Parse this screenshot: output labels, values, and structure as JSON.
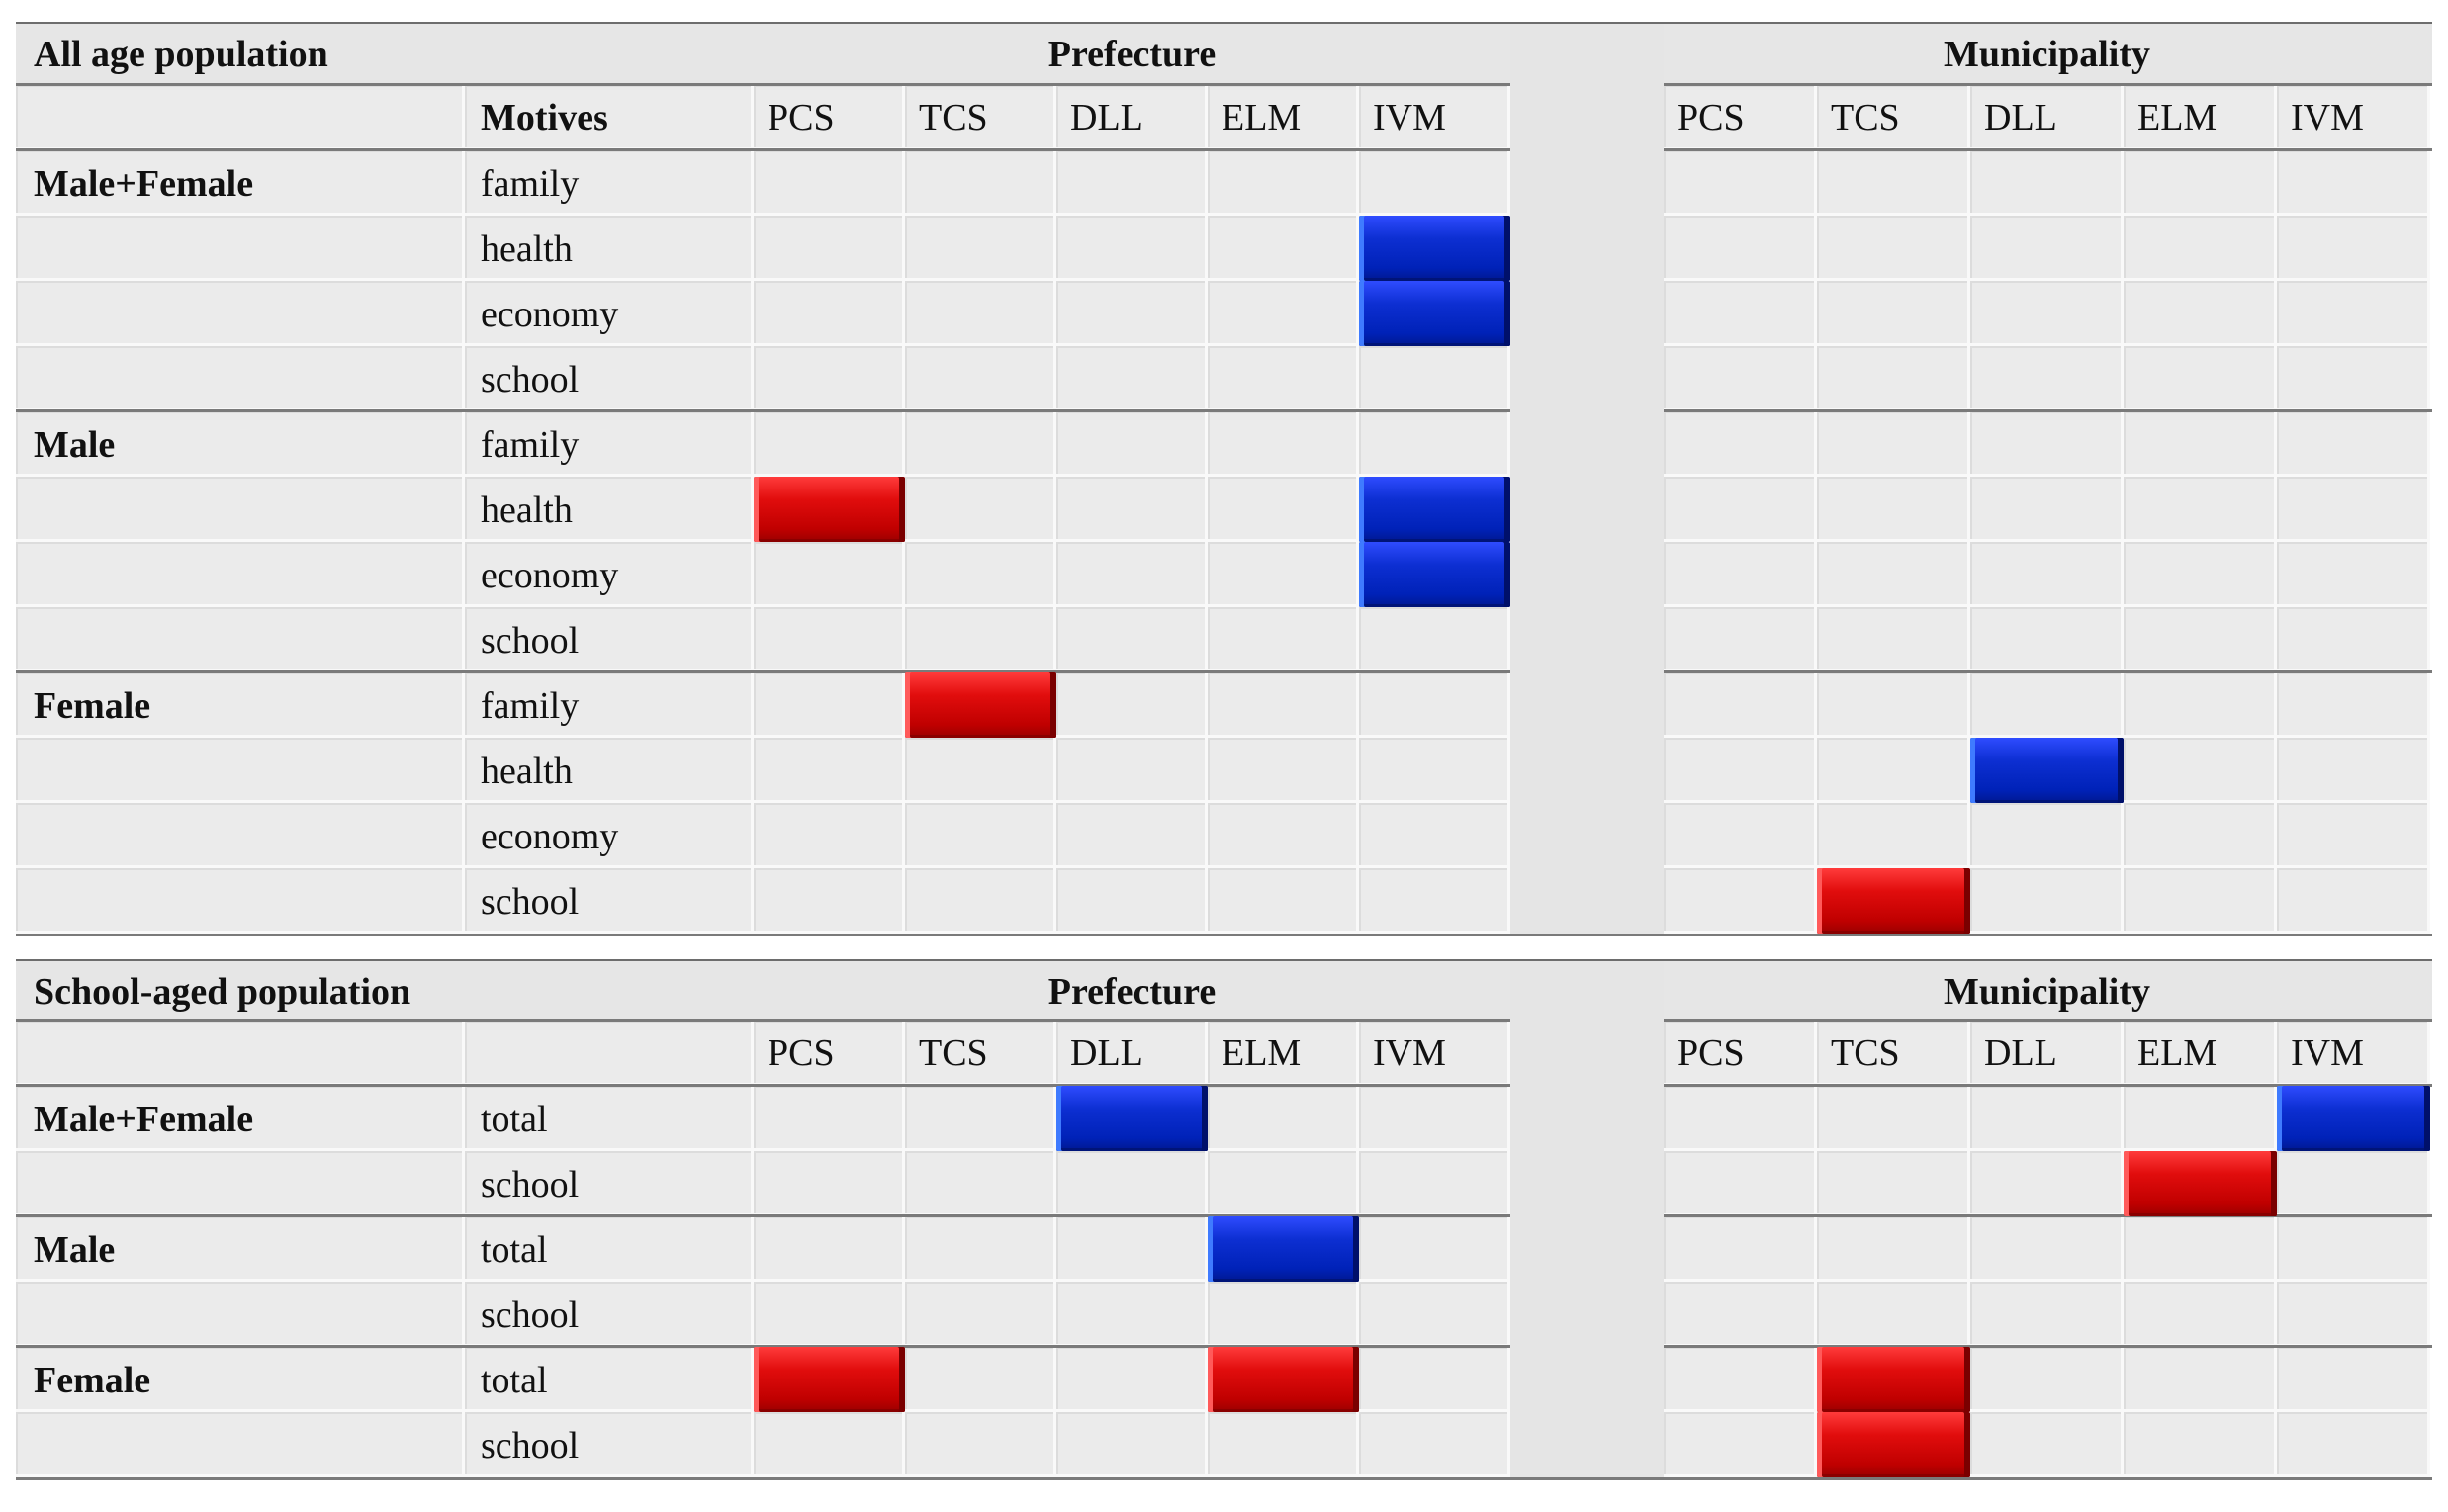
{
  "sections": [
    {
      "id": "all-age",
      "title": "All age population",
      "group_label_col": "",
      "sub_label_col": "Motives",
      "rows": [
        {
          "group": "Male+Female",
          "sub": "family"
        },
        {
          "group": "",
          "sub": "health"
        },
        {
          "group": "",
          "sub": "economy"
        },
        {
          "group": "",
          "sub": "school"
        },
        {
          "group": "Male",
          "sub": "family"
        },
        {
          "group": "",
          "sub": "health"
        },
        {
          "group": "",
          "sub": "economy"
        },
        {
          "group": "",
          "sub": "school"
        },
        {
          "group": "Female",
          "sub": "family"
        },
        {
          "group": "",
          "sub": "health"
        },
        {
          "group": "",
          "sub": "economy"
        },
        {
          "group": "",
          "sub": "school"
        }
      ],
      "marks": [
        {
          "row": 1,
          "panel": "Prefecture",
          "col": "IVM",
          "color": "blue"
        },
        {
          "row": 2,
          "panel": "Prefecture",
          "col": "IVM",
          "color": "blue"
        },
        {
          "row": 5,
          "panel": "Prefecture",
          "col": "PCS",
          "color": "red"
        },
        {
          "row": 5,
          "panel": "Prefecture",
          "col": "IVM",
          "color": "blue"
        },
        {
          "row": 6,
          "panel": "Prefecture",
          "col": "IVM",
          "color": "blue"
        },
        {
          "row": 8,
          "panel": "Prefecture",
          "col": "TCS",
          "color": "red"
        },
        {
          "row": 9,
          "panel": "Municipality",
          "col": "DLL",
          "color": "blue"
        },
        {
          "row": 11,
          "panel": "Municipality",
          "col": "TCS",
          "color": "red"
        }
      ]
    },
    {
      "id": "school-aged",
      "title": "School-aged population",
      "group_label_col": "",
      "sub_label_col": "",
      "rows": [
        {
          "group": "Male+Female",
          "sub": "total"
        },
        {
          "group": "",
          "sub": "school"
        },
        {
          "group": "Male",
          "sub": "total"
        },
        {
          "group": "",
          "sub": "school"
        },
        {
          "group": "Female",
          "sub": "total"
        },
        {
          "group": "",
          "sub": "school"
        }
      ],
      "marks": [
        {
          "row": 0,
          "panel": "Prefecture",
          "col": "DLL",
          "color": "blue"
        },
        {
          "row": 0,
          "panel": "Municipality",
          "col": "IVM",
          "color": "blue"
        },
        {
          "row": 1,
          "panel": "Municipality",
          "col": "ELM",
          "color": "red"
        },
        {
          "row": 2,
          "panel": "Prefecture",
          "col": "ELM",
          "color": "blue"
        },
        {
          "row": 4,
          "panel": "Prefecture",
          "col": "PCS",
          "color": "red"
        },
        {
          "row": 4,
          "panel": "Prefecture",
          "col": "ELM",
          "color": "red"
        },
        {
          "row": 4,
          "panel": "Municipality",
          "col": "TCS",
          "color": "red"
        },
        {
          "row": 5,
          "panel": "Municipality",
          "col": "TCS",
          "color": "red"
        }
      ]
    }
  ],
  "panels": [
    "Prefecture",
    "Municipality"
  ],
  "columns": [
    "PCS",
    "TCS",
    "DLL",
    "ELM",
    "IVM"
  ],
  "colors": {
    "red": "#d40000",
    "blue": "#0022c0",
    "cell": "#ebebeb"
  },
  "legend": {}
}
